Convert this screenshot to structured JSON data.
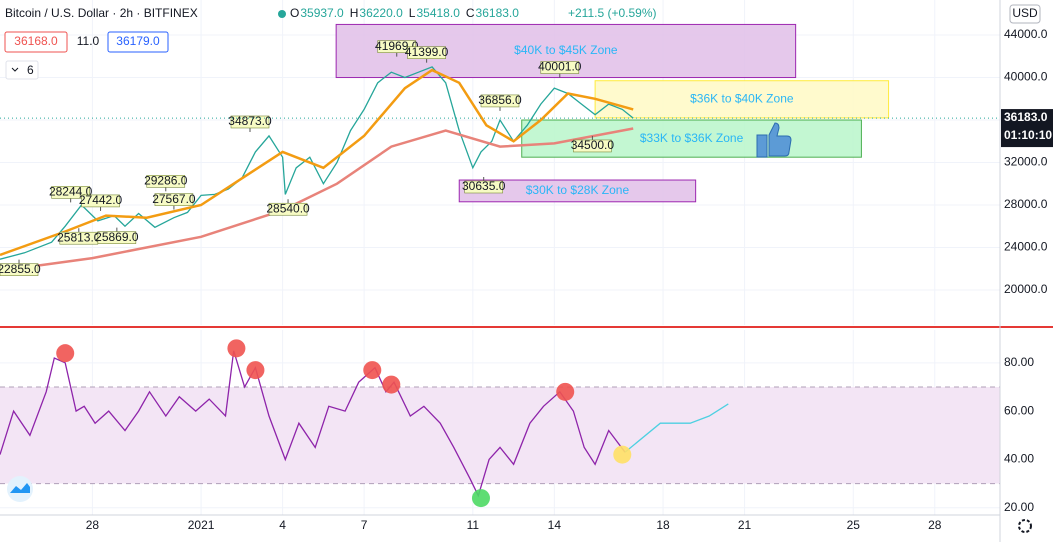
{
  "header": {
    "title": "Bitcoin / U.S. Dollar · 2h · BITFINEX",
    "ohlc": [
      {
        "k": "O",
        "v": "35937.0"
      },
      {
        "k": "H",
        "v": "36220.0"
      },
      {
        "k": "L",
        "v": "35418.0"
      },
      {
        "k": "C",
        "v": "36183.0"
      }
    ],
    "change": "+211.5 (+0.59%)",
    "bid": "36168.0",
    "spread": "11.0",
    "ask": "36179.0",
    "interval_badge": "6",
    "currency": "USD",
    "countdown": "01:10:10"
  },
  "chart_data": [
    {
      "type": "line",
      "xlim": [
        24.6,
        61.4
      ],
      "ylim": [
        16700,
        47300
      ],
      "xticks": [
        {
          "value": 28,
          "label": "28"
        },
        {
          "value": 32,
          "label": "2021"
        },
        {
          "value": 35,
          "label": "4"
        },
        {
          "value": 38,
          "label": "7"
        },
        {
          "value": 42,
          "label": "11"
        },
        {
          "value": 45,
          "label": "14"
        },
        {
          "value": 49,
          "label": "18"
        },
        {
          "value": 52,
          "label": "21"
        },
        {
          "value": 56,
          "label": "25"
        },
        {
          "value": 59,
          "label": "28"
        }
      ],
      "yticks": [
        {
          "value": 20000,
          "label": "20000.0"
        },
        {
          "value": 24000,
          "label": "24000.0"
        },
        {
          "value": 28000,
          "label": "28000.0"
        },
        {
          "value": 32000,
          "label": "32000.0"
        },
        {
          "value": 36000,
          "label": "36000.0"
        },
        {
          "value": 40000,
          "label": "40000.0"
        },
        {
          "value": 44000,
          "label": "44000.0"
        }
      ],
      "grid": true,
      "last_price": {
        "value": 36183,
        "label": "36183.0"
      },
      "series": [
        {
          "color": "#26a69a",
          "x": [
            24.6,
            25.5,
            26.5,
            27,
            27.6,
            28.2,
            28.8,
            29.2,
            29.7,
            30.3,
            31,
            31.5,
            32,
            32.5,
            33,
            33.5,
            34,
            34.5,
            35,
            35.1,
            35.5,
            36,
            36.5,
            37,
            37.5,
            38,
            38.5,
            39,
            39.5,
            40,
            40.5,
            41,
            41.5,
            42,
            42.3,
            42.7,
            43,
            43.5,
            44,
            44.5,
            45,
            45.5,
            46,
            46.5,
            47,
            47.5,
            47.9
          ],
          "values": [
            22900,
            23500,
            24500,
            26000,
            28000,
            26500,
            27000,
            26000,
            27200,
            25900,
            26800,
            27300,
            28900,
            29000,
            29500,
            30500,
            33000,
            34500,
            32500,
            29000,
            31500,
            32500,
            30000,
            32000,
            35000,
            37000,
            39500,
            40500,
            40000,
            40500,
            41000,
            39500,
            35000,
            31500,
            33000,
            34000,
            36000,
            34000,
            35500,
            37500,
            39000,
            38500,
            37500,
            36500,
            37500,
            37000,
            36183
          ]
        },
        {
          "color": "#f39c12",
          "x": [
            24.6,
            27,
            28.5,
            30,
            32,
            33.5,
            35,
            36.5,
            38,
            39.5,
            40.5,
            41.5,
            42.5,
            43.5,
            44.5,
            45.5,
            46.5,
            47.9
          ],
          "values": [
            23300,
            25500,
            27000,
            26800,
            28000,
            30500,
            33000,
            31500,
            34500,
            39000,
            40700,
            39500,
            35500,
            34000,
            36000,
            38500,
            38000,
            37000
          ]
        },
        {
          "color": "#e8837a",
          "x": [
            24.6,
            28,
            32,
            35,
            37,
            39,
            41,
            43,
            45,
            47.9
          ],
          "values": [
            21800,
            23000,
            25000,
            27500,
            30000,
            33500,
            35000,
            33500,
            33800,
            35200
          ]
        }
      ],
      "annotations": [
        {
          "x": 25.3,
          "value": 22855,
          "label": "22855.0"
        },
        {
          "x": 27.2,
          "value": 28244,
          "label": "28244.0"
        },
        {
          "x": 28.3,
          "value": 27442,
          "label": "27442.0"
        },
        {
          "x": 27.5,
          "value": 25813,
          "label": "25813.0"
        },
        {
          "x": 28.9,
          "value": 25869,
          "label": "25869.0"
        },
        {
          "x": 30.7,
          "value": 29286,
          "label": "29286.0"
        },
        {
          "x": 31.0,
          "value": 27567,
          "label": "27567.0"
        },
        {
          "x": 33.8,
          "value": 34873,
          "label": "34873.0"
        },
        {
          "x": 35.2,
          "value": 28540,
          "label": "28540.0"
        },
        {
          "x": 39.2,
          "value": 41969,
          "label": "41969.0"
        },
        {
          "x": 40.3,
          "value": 41399,
          "label": "41399.0"
        },
        {
          "x": 43.0,
          "value": 36856,
          "label": "36856.0"
        },
        {
          "x": 42.4,
          "value": 30635,
          "label": "30635.0"
        },
        {
          "x": 45.2,
          "value": 40001,
          "label": "40001.0"
        },
        {
          "x": 46.4,
          "value": 34500,
          "label": "34500.0"
        }
      ],
      "zones": [
        {
          "label": "$40K to $45K Zone",
          "x": [
            36.97,
            53.88
          ],
          "y": [
            40000,
            45000
          ],
          "color": "#e1bee7",
          "text_color": "#29b6f6"
        },
        {
          "label": "$36K to $40K Zone",
          "x": [
            46.5,
            57.3
          ],
          "y": [
            36200,
            39700
          ],
          "color": "#fff9c4",
          "text_color": "#29b6f6"
        },
        {
          "label": "$33K to $36K Zone",
          "x": [
            43.8,
            56.3
          ],
          "y": [
            32500,
            36000
          ],
          "color": "#b9f6ca",
          "text_color": "#29b6f6"
        },
        {
          "label": "$30K to $28K Zone",
          "x": [
            41.5,
            50.2
          ],
          "y": [
            28300,
            30350
          ],
          "color": "#e1bee7",
          "text_color": "#29b6f6"
        }
      ]
    },
    {
      "type": "line",
      "xlim": [
        24.6,
        61.4
      ],
      "ylim": [
        17,
        93.6
      ],
      "yticks": [
        {
          "value": 20,
          "label": "20.00"
        },
        {
          "value": 40,
          "label": "40.00"
        },
        {
          "value": 60,
          "label": "60.00"
        },
        {
          "value": 80,
          "label": "80.00"
        }
      ],
      "bands": [
        30,
        70
      ],
      "series": [
        {
          "color": "#8e24aa",
          "x": [
            24.6,
            25.1,
            25.7,
            26.3,
            26.6,
            27.0,
            27.4,
            27.7,
            28.1,
            28.6,
            29.2,
            29.7,
            30.1,
            30.7,
            31.2,
            31.8,
            32.3,
            32.9,
            33.2,
            33.6,
            34.0,
            34.5,
            35.1,
            35.6,
            36.2,
            36.7,
            37.3,
            37.8,
            38.4,
            38.8,
            39.1,
            39.7,
            40.2,
            40.8,
            41.3,
            41.9,
            42.2,
            42.6,
            43.0,
            43.5,
            44.1,
            44.6,
            45.2,
            45.7,
            46.1,
            46.5,
            47.0,
            47.6
          ],
          "values": [
            42,
            60,
            50,
            68,
            82,
            80,
            60,
            62,
            55,
            60,
            52,
            60,
            68,
            58,
            66,
            60,
            65,
            58,
            85,
            70,
            78,
            58,
            40,
            55,
            45,
            62,
            60,
            72,
            78,
            68,
            72,
            58,
            62,
            55,
            45,
            32,
            25,
            40,
            45,
            38,
            55,
            62,
            68,
            60,
            45,
            38,
            52,
            43
          ]
        },
        {
          "color": "#4dd0e1",
          "x": [
            47.6,
            48.9,
            50.0,
            50.7,
            51.4
          ],
          "values": [
            43,
            55,
            55,
            58,
            63
          ]
        }
      ],
      "markers": [
        {
          "x": 27.0,
          "y": 84,
          "color": "#ef5350"
        },
        {
          "x": 33.3,
          "y": 86,
          "color": "#ef5350"
        },
        {
          "x": 34.0,
          "y": 77,
          "color": "#ef5350"
        },
        {
          "x": 38.3,
          "y": 77,
          "color": "#ef5350"
        },
        {
          "x": 39.0,
          "y": 71,
          "color": "#ef5350"
        },
        {
          "x": 45.4,
          "y": 68,
          "color": "#ef5350"
        },
        {
          "x": 42.3,
          "y": 24,
          "color": "#4cd964"
        },
        {
          "x": 47.5,
          "y": 42,
          "color": "#ffe066"
        }
      ]
    }
  ]
}
